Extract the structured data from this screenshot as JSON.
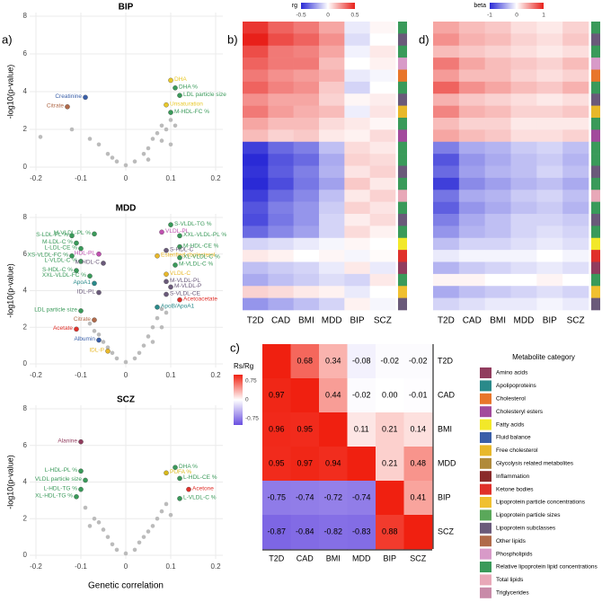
{
  "panel_labels": [
    "a)",
    "b)",
    "c)",
    "d)"
  ],
  "legend": {
    "title": "Metabolite category",
    "categories": [
      {
        "name": "Amino acids",
        "color": "#913c5e"
      },
      {
        "name": "Apolipoproteins",
        "color": "#2a8a8a"
      },
      {
        "name": "Cholesterol",
        "color": "#e8762b"
      },
      {
        "name": "Cholesteryl esters",
        "color": "#a24a9c"
      },
      {
        "name": "Fatty acids",
        "color": "#f2e829"
      },
      {
        "name": "Fluid balance",
        "color": "#3a5fa8"
      },
      {
        "name": "Free cholesterol",
        "color": "#e8b82a"
      },
      {
        "name": "Glycolysis related metabolites",
        "color": "#b08a3a"
      },
      {
        "name": "Inflammation",
        "color": "#8a2a2a"
      },
      {
        "name": "Ketone bodies",
        "color": "#e0302a"
      },
      {
        "name": "Lipoprotein particle concentrations",
        "color": "#f0c030"
      },
      {
        "name": "Lipoprotein particle sizes",
        "color": "#5aa85a"
      },
      {
        "name": "Lipoprotein subclasses",
        "color": "#6a5a7a"
      },
      {
        "name": "Other lipids",
        "color": "#b06a4a"
      },
      {
        "name": "Phospholipids",
        "color": "#d89ac8"
      },
      {
        "name": "Relative lipoprotein lipid concentrations",
        "color": "#3a9a5a"
      },
      {
        "name": "Total lipids",
        "color": "#e8a8b8"
      },
      {
        "name": "Triglycerides",
        "color": "#c88aa8"
      }
    ]
  },
  "chart_data": [
    {
      "type": "scatter",
      "title": "BIP",
      "y_label": "-log10(p-value)",
      "xlim": [
        -0.2,
        0.2
      ],
      "ylim": [
        0,
        8
      ],
      "xticks": [
        -0.2,
        -0.1,
        0,
        0.1,
        0.2
      ],
      "yticks": [
        0,
        2,
        4,
        6,
        8
      ],
      "grid": true,
      "point_color": "#bbbbbb",
      "x": [
        -0.19,
        -0.12,
        -0.08,
        -0.06,
        -0.04,
        -0.02,
        0,
        0.02,
        0.04,
        0.05,
        0.06,
        0.07,
        0.08,
        0.09,
        0.1,
        0.11,
        0.05,
        -0.03,
        0.08,
        0.1
      ],
      "y": [
        1.6,
        2.0,
        1.5,
        1.2,
        0.7,
        0.3,
        0.1,
        0.3,
        0.7,
        1.0,
        1.5,
        1.8,
        2.2,
        2.0,
        2.5,
        2.2,
        0.4,
        0.5,
        1.4,
        1.2
      ],
      "annotations": [
        {
          "text": "DHA",
          "x": 0.1,
          "y": 4.6,
          "color": "#e8c82a"
        },
        {
          "text": "DHA %",
          "x": 0.11,
          "y": 4.2,
          "color": "#3a9a5a"
        },
        {
          "text": "LDL particle size",
          "x": 0.12,
          "y": 3.8,
          "color": "#3a9a5a"
        },
        {
          "text": "Unsaturation",
          "x": 0.09,
          "y": 3.3,
          "color": "#e8c82a"
        },
        {
          "text": "M-HDL-FC %",
          "x": 0.1,
          "y": 2.9,
          "color": "#3a9a5a"
        },
        {
          "text": "Creatinine",
          "x": -0.09,
          "y": 3.7,
          "color": "#3a5fa8"
        },
        {
          "text": "Citrate",
          "x": -0.13,
          "y": 3.2,
          "color": "#b06a4a"
        }
      ]
    },
    {
      "type": "scatter",
      "title": "MDD",
      "y_label": "-log10(p-value)",
      "xlim": [
        -0.2,
        0.2
      ],
      "ylim": [
        0,
        8
      ],
      "xticks": [
        -0.2,
        -0.1,
        0,
        0.1,
        0.2
      ],
      "yticks": [
        0,
        2,
        4,
        6,
        8
      ],
      "grid": true,
      "point_color": "#bbbbbb",
      "x": [
        -0.08,
        -0.06,
        -0.05,
        -0.04,
        -0.03,
        -0.02,
        0,
        0.02,
        0.03,
        0.04,
        0.05,
        0.06,
        0.07,
        0.08,
        0.06,
        -0.07,
        0.09,
        0.08
      ],
      "y": [
        2.2,
        1.6,
        1.2,
        0.9,
        0.6,
        0.3,
        0.1,
        0.3,
        0.6,
        1.0,
        1.5,
        2.0,
        2.5,
        3.0,
        1.2,
        1.8,
        2.8,
        2.0
      ],
      "annotations": [
        {
          "text": "S-VLDL-TG %",
          "x": 0.1,
          "y": 7.6,
          "color": "#3a9a5a"
        },
        {
          "text": "VLDL-PL",
          "x": 0.08,
          "y": 7.2,
          "color": "#c050b0"
        },
        {
          "text": "XXL-VLDL-PL %",
          "x": 0.12,
          "y": 7.0,
          "color": "#3a9a5a"
        },
        {
          "text": "M-HDL-CE %",
          "x": 0.12,
          "y": 6.4,
          "color": "#3a9a5a"
        },
        {
          "text": "S-HDL-C",
          "x": 0.09,
          "y": 6.2,
          "color": "#6a5a7a"
        },
        {
          "text": "Esterified cholesterol",
          "x": 0.07,
          "y": 5.9,
          "color": "#e8b82a"
        },
        {
          "text": "XL-VLDL-C %",
          "x": 0.12,
          "y": 5.8,
          "color": "#3a9a5a"
        },
        {
          "text": "M-VLDL-C %",
          "x": 0.11,
          "y": 5.4,
          "color": "#3a9a5a"
        },
        {
          "text": "VLDL-C",
          "x": 0.09,
          "y": 4.9,
          "color": "#e8b82a"
        },
        {
          "text": "M-VLDL-PL",
          "x": 0.09,
          "y": 4.5,
          "color": "#6a5a7a"
        },
        {
          "text": "M-VLDL-P",
          "x": 0.1,
          "y": 4.2,
          "color": "#6a5a7a"
        },
        {
          "text": "S-VLDL-CE",
          "x": 0.09,
          "y": 3.8,
          "color": "#6a5a7a"
        },
        {
          "text": "Acetoacetate",
          "x": 0.12,
          "y": 3.5,
          "color": "#e0302a"
        },
        {
          "text": "ApoB/ApoA1",
          "x": 0.07,
          "y": 3.1,
          "color": "#2a8a8a"
        },
        {
          "text": "S-LDL-PL %",
          "x": -0.12,
          "y": 7.0,
          "color": "#3a9a5a"
        },
        {
          "text": "M-VLDL-PL %",
          "x": -0.07,
          "y": 7.1,
          "color": "#3a9a5a"
        },
        {
          "text": "M-LDL-C %",
          "x": -0.11,
          "y": 6.6,
          "color": "#3a9a5a"
        },
        {
          "text": "L-LDL-CE %",
          "x": -0.1,
          "y": 6.3,
          "color": "#3a9a5a"
        },
        {
          "text": "HDL-PL",
          "x": -0.06,
          "y": 6.0,
          "color": "#c050b0"
        },
        {
          "text": "XS-VLDL-FC %",
          "x": -0.12,
          "y": 5.9,
          "color": "#3a9a5a"
        },
        {
          "text": "L-VLDL-C %",
          "x": -0.1,
          "y": 5.6,
          "color": "#3a9a5a"
        },
        {
          "text": "M-HDL-C",
          "x": -0.05,
          "y": 5.5,
          "color": "#6a5a7a"
        },
        {
          "text": "S-HDL-C %",
          "x": -0.11,
          "y": 5.1,
          "color": "#3a9a5a"
        },
        {
          "text": "XXL-VLDL-FC %",
          "x": -0.08,
          "y": 4.8,
          "color": "#3a9a5a"
        },
        {
          "text": "ApoA1",
          "x": -0.07,
          "y": 4.4,
          "color": "#2a8a8a"
        },
        {
          "text": "IDL-PL",
          "x": -0.06,
          "y": 3.9,
          "color": "#6a5a7a"
        },
        {
          "text": "LDL particle size",
          "x": -0.1,
          "y": 2.9,
          "color": "#3a9a5a"
        },
        {
          "text": "Citrate",
          "x": -0.07,
          "y": 2.4,
          "color": "#b06a4a"
        },
        {
          "text": "Acetate",
          "x": -0.11,
          "y": 1.9,
          "color": "#e0302a"
        },
        {
          "text": "Albumin",
          "x": -0.06,
          "y": 1.3,
          "color": "#3a5fa8"
        },
        {
          "text": "IDL-P",
          "x": -0.04,
          "y": 0.7,
          "color": "#e8b82a"
        }
      ]
    },
    {
      "type": "scatter",
      "title": "SCZ",
      "y_label": "-log10(p-value)",
      "x_label": "Genetic correlation",
      "xlim": [
        -0.2,
        0.2
      ],
      "ylim": [
        0,
        8
      ],
      "xticks": [
        -0.2,
        -0.1,
        0,
        0.1,
        0.2
      ],
      "yticks": [
        0,
        2,
        4,
        6,
        8
      ],
      "grid": true,
      "point_color": "#bbbbbb",
      "x": [
        -0.09,
        -0.07,
        -0.05,
        -0.04,
        -0.03,
        -0.02,
        0,
        0.02,
        0.03,
        0.04,
        0.06,
        0.07,
        0.08,
        0.09,
        -0.06,
        0.05,
        0.1,
        -0.08
      ],
      "y": [
        2.6,
        2.0,
        1.4,
        1.0,
        0.6,
        0.3,
        0.1,
        0.3,
        0.7,
        1.0,
        1.6,
        2.0,
        2.4,
        2.8,
        1.8,
        1.3,
        2.2,
        1.6
      ],
      "annotations": [
        {
          "text": "Alanine",
          "x": -0.1,
          "y": 6.2,
          "color": "#913c5e"
        },
        {
          "text": "L-HDL-PL %",
          "x": -0.1,
          "y": 4.6,
          "color": "#3a9a5a"
        },
        {
          "text": "VLDL particle size",
          "x": -0.09,
          "y": 4.1,
          "color": "#3a9a5a"
        },
        {
          "text": "L-HDL-TG %",
          "x": -0.1,
          "y": 3.6,
          "color": "#3a9a5a"
        },
        {
          "text": "XL-HDL-TG %",
          "x": -0.11,
          "y": 3.2,
          "color": "#3a9a5a"
        },
        {
          "text": "PUFA %",
          "x": 0.09,
          "y": 4.5,
          "color": "#d8b81a"
        },
        {
          "text": "DHA %",
          "x": 0.11,
          "y": 4.8,
          "color": "#3a9a5a"
        },
        {
          "text": "L-HDL-CE %",
          "x": 0.12,
          "y": 4.2,
          "color": "#3a9a5a"
        },
        {
          "text": "Acetone",
          "x": 0.14,
          "y": 3.6,
          "color": "#e0302a"
        },
        {
          "text": "L-VLDL-C %",
          "x": 0.12,
          "y": 3.1,
          "color": "#3a9a5a"
        }
      ]
    },
    {
      "type": "heatmap",
      "colorbar": {
        "label": "rg",
        "lim": [
          -0.5,
          0.5
        ],
        "ticks": [
          -0.5,
          0,
          0.5
        ]
      },
      "colors": [
        "#2a2ad6",
        "#ffffff",
        "#e8201a"
      ],
      "categories": [
        "T2D",
        "CAD",
        "BMI",
        "MDD",
        "BIP",
        "SCZ"
      ],
      "row_colors": [
        "#3a9a5a",
        "#6a5a7a",
        "#3a9a5a",
        "#d89ac8",
        "#e8762b",
        "#3a9a5a",
        "#6a5a7a",
        "#e8b82a",
        "#3a9a5a",
        "#a24a9c",
        "#3a9a5a",
        "#3a9a5a",
        "#6a5a7a",
        "#3a9a5a",
        "#e8a8b8",
        "#3a9a5a",
        "#6a5a7a",
        "#3a9a5a",
        "#f2e829",
        "#e0302a",
        "#913c5e",
        "#3a9a5a",
        "#f0c030",
        "#6a5a7a"
      ],
      "values": [
        [
          0.45,
          0.35,
          0.3,
          0.2,
          -0.05,
          0.02
        ],
        [
          0.5,
          0.4,
          0.35,
          0.25,
          -0.08,
          0
        ],
        [
          0.4,
          0.3,
          0.28,
          0.2,
          -0.03,
          0.05
        ],
        [
          0.35,
          0.3,
          0.3,
          0.15,
          0,
          0.03
        ],
        [
          0.3,
          0.25,
          0.22,
          0.18,
          -0.05,
          -0.02
        ],
        [
          0.35,
          0.28,
          0.25,
          0.12,
          -0.1,
          0
        ],
        [
          0.25,
          0.2,
          0.2,
          0.1,
          0.02,
          0.04
        ],
        [
          0.3,
          0.22,
          0.18,
          0.15,
          -0.04,
          0.06
        ],
        [
          0.2,
          0.15,
          0.15,
          0.08,
          0.05,
          0.02
        ],
        [
          0.15,
          0.1,
          0.12,
          0.05,
          0.03,
          0.08
        ],
        [
          -0.45,
          -0.35,
          -0.3,
          -0.15,
          0.08,
          0.05
        ],
        [
          -0.5,
          -0.4,
          -0.35,
          -0.2,
          0.1,
          0.08
        ],
        [
          -0.48,
          -0.38,
          -0.3,
          -0.18,
          0.06,
          0.1
        ],
        [
          -0.5,
          -0.42,
          -0.32,
          -0.22,
          0.12,
          0.05
        ],
        [
          -0.45,
          -0.35,
          -0.28,
          -0.15,
          0.05,
          0.1
        ],
        [
          -0.4,
          -0.3,
          -0.25,
          -0.12,
          0.1,
          0.06
        ],
        [
          -0.42,
          -0.32,
          -0.25,
          -0.1,
          0.04,
          0.08
        ],
        [
          -0.35,
          -0.28,
          -0.22,
          -0.1,
          0.08,
          0.03
        ],
        [
          -0.1,
          -0.08,
          -0.05,
          -0.02,
          0.02,
          0
        ],
        [
          0.05,
          0.03,
          0,
          0.02,
          -0.02,
          0.01
        ],
        [
          -0.15,
          -0.12,
          -0.1,
          -0.05,
          0.05,
          -0.05
        ],
        [
          -0.2,
          -0.15,
          -0.12,
          -0.08,
          -0.1,
          0.05
        ],
        [
          0.1,
          0.08,
          0.05,
          0.03,
          -0.05,
          0
        ],
        [
          -0.25,
          -0.2,
          -0.15,
          -0.1,
          0.03,
          -0.02
        ]
      ]
    },
    {
      "type": "heatmap",
      "colorbar": {
        "label": "beta",
        "lim": [
          -1,
          1
        ],
        "ticks": [
          -1,
          0,
          1
        ]
      },
      "colors": [
        "#2a2ad6",
        "#ffffff",
        "#e8201a"
      ],
      "categories": [
        "T2D",
        "CAD",
        "BMI",
        "MDD",
        "BIP",
        "SCZ"
      ],
      "row_colors": [
        "#3a9a5a",
        "#6a5a7a",
        "#3a9a5a",
        "#d89ac8",
        "#e8762b",
        "#3a9a5a",
        "#6a5a7a",
        "#e8b82a",
        "#3a9a5a",
        "#a24a9c",
        "#3a9a5a",
        "#3a9a5a",
        "#6a5a7a",
        "#3a9a5a",
        "#e8a8b8",
        "#3a9a5a",
        "#6a5a7a",
        "#3a9a5a",
        "#f2e829",
        "#e0302a",
        "#913c5e",
        "#3a9a5a",
        "#f0c030",
        "#6a5a7a"
      ],
      "values": [
        [
          0.4,
          0.3,
          0.25,
          0.15,
          0.1,
          0.2
        ],
        [
          0.5,
          0.35,
          0.3,
          0.2,
          0.15,
          0.25
        ],
        [
          0.3,
          0.25,
          0.2,
          0.15,
          0.1,
          0.15
        ],
        [
          0.6,
          0.4,
          0.3,
          0.25,
          0.2,
          0.3
        ],
        [
          0.45,
          0.3,
          0.3,
          0.2,
          0.15,
          0.2
        ],
        [
          0.7,
          0.5,
          0.4,
          0.3,
          0.25,
          0.35
        ],
        [
          0.35,
          0.25,
          0.2,
          0.15,
          0.1,
          0.15
        ],
        [
          0.55,
          0.35,
          0.3,
          0.2,
          0.2,
          0.25
        ],
        [
          0.3,
          0.2,
          0.2,
          0.1,
          0.1,
          0.1
        ],
        [
          0.4,
          0.3,
          0.25,
          0.15,
          0.15,
          0.2
        ],
        [
          -0.6,
          -0.4,
          -0.35,
          -0.25,
          -0.2,
          -0.3
        ],
        [
          -0.8,
          -0.5,
          -0.4,
          -0.3,
          -0.25,
          -0.35
        ],
        [
          -0.7,
          -0.45,
          -0.35,
          -0.3,
          -0.2,
          -0.3
        ],
        [
          -0.9,
          -0.55,
          -0.45,
          -0.35,
          -0.3,
          -0.4
        ],
        [
          -0.65,
          -0.4,
          -0.35,
          -0.25,
          -0.2,
          -0.3
        ],
        [
          -0.75,
          -0.5,
          -0.4,
          -0.3,
          -0.25,
          -0.35
        ],
        [
          -0.6,
          -0.4,
          -0.3,
          -0.2,
          -0.2,
          -0.25
        ],
        [
          -0.5,
          -0.35,
          -0.3,
          -0.2,
          -0.15,
          -0.2
        ],
        [
          -0.3,
          -0.2,
          -0.2,
          -0.15,
          -0.1,
          -0.15
        ],
        [
          -0.1,
          -0.05,
          -0.05,
          -0.05,
          0,
          -0.05
        ],
        [
          -0.35,
          -0.25,
          -0.2,
          -0.15,
          -0.1,
          -0.15
        ],
        [
          0.05,
          0.05,
          0,
          0,
          0.05,
          0
        ],
        [
          -0.4,
          -0.3,
          -0.25,
          -0.2,
          -0.15,
          -0.2
        ],
        [
          -0.2,
          -0.15,
          -0.1,
          -0.1,
          -0.05,
          -0.1
        ]
      ]
    },
    {
      "type": "matrix",
      "colorbar": {
        "label": "Rs/Rg",
        "lim": [
          -1,
          1
        ],
        "ticks": [
          0.75,
          0,
          -0.75
        ]
      },
      "colors": [
        "#6a4fe0",
        "#ffffff",
        "#f02010"
      ],
      "categories": [
        "T2D",
        "CAD",
        "BMI",
        "MDD",
        "BIP",
        "SCZ"
      ],
      "values": [
        [
          null,
          0.68,
          0.34,
          -0.08,
          -0.02,
          -0.02
        ],
        [
          0.97,
          null,
          0.44,
          -0.02,
          0,
          -0.01
        ],
        [
          0.96,
          0.95,
          null,
          0.11,
          0.21,
          0.14
        ],
        [
          0.95,
          0.97,
          0.94,
          null,
          0.21,
          0.48
        ],
        [
          -0.75,
          -0.74,
          -0.72,
          -0.74,
          null,
          0.41
        ],
        [
          -0.87,
          -0.84,
          -0.82,
          -0.83,
          0.88,
          null
        ]
      ],
      "value_labels": [
        [
          null,
          "0.68",
          "0.34",
          "-0.08",
          "-0.02",
          "-0.02"
        ],
        [
          "0.97",
          null,
          "0.44",
          "-0.02",
          "0.00",
          "-0.01"
        ],
        [
          "0.96",
          "0.95",
          null,
          "0.11",
          "0.21",
          "0.14"
        ],
        [
          "0.95",
          "0.97",
          "0.94",
          null,
          "0.21",
          "0.48"
        ],
        [
          "-0.75",
          "-0.74",
          "-0.72",
          "-0.74",
          null,
          "0.41"
        ],
        [
          "-0.87",
          "-0.84",
          "-0.82",
          "-0.83",
          "0.88",
          null
        ]
      ]
    }
  ]
}
